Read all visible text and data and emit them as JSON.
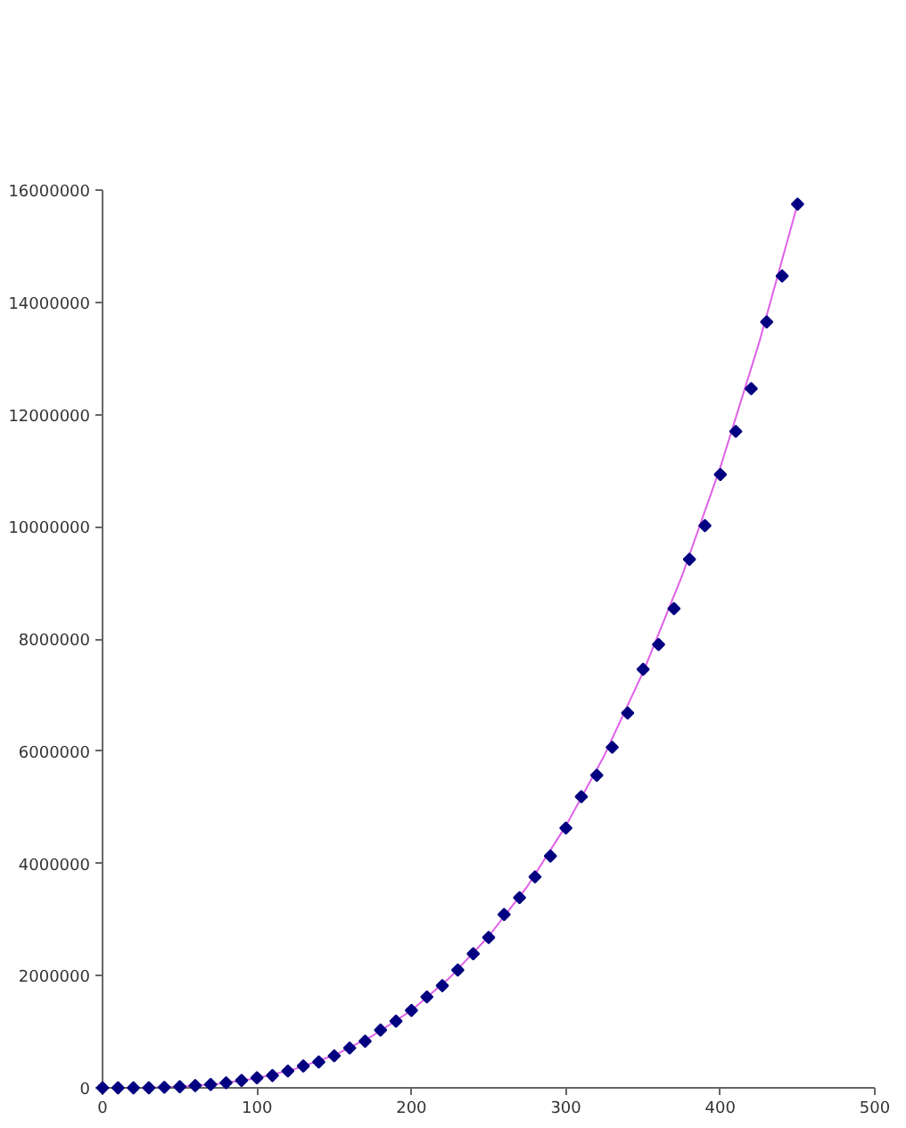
{
  "chart_data": {
    "type": "scatter",
    "xlim": [
      0,
      500
    ],
    "xticks": [
      0,
      100,
      200,
      300,
      400,
      500
    ],
    "ylim": [
      0,
      16000000
    ],
    "yticks": [
      0,
      2000000,
      4000000,
      6000000,
      8000000,
      10000000,
      12000000,
      14000000,
      16000000
    ],
    "grid": false,
    "marker": "diamond",
    "series": [
      {
        "type": "line",
        "marker": "none",
        "color": "#e060e8",
        "x": [
          0,
          25,
          50,
          75,
          100,
          125,
          150,
          175,
          200,
          225,
          250,
          275,
          300,
          325,
          350,
          375,
          400,
          425,
          450
        ],
        "values": [
          0,
          0,
          20000,
          70000,
          170000,
          340000,
          580000,
          930000,
          1380000,
          1970000,
          2700000,
          3590000,
          4670000,
          5930000,
          7410000,
          9110000,
          11060000,
          13270000,
          15750000
        ]
      },
      {
        "color": "#000080",
        "x": [
          0,
          10,
          20,
          30,
          40,
          50,
          60,
          70,
          80,
          90,
          100,
          110,
          120,
          130,
          140,
          150,
          160,
          170,
          180,
          190,
          200,
          210,
          220,
          230,
          240,
          250,
          260,
          270,
          280,
          290,
          300,
          310,
          320,
          330,
          340,
          350,
          360,
          370,
          380,
          390,
          400,
          410,
          420,
          430,
          440,
          450
        ],
        "values": [
          0,
          0,
          0,
          0,
          10000,
          20000,
          40000,
          60000,
          90000,
          130000,
          180000,
          220000,
          300000,
          390000,
          460000,
          570000,
          710000,
          830000,
          1030000,
          1190000,
          1380000,
          1620000,
          1820000,
          2100000,
          2390000,
          2680000,
          3090000,
          3390000,
          3760000,
          4130000,
          4630000,
          5190000,
          5570000,
          6070000,
          6680000,
          7460000,
          7900000,
          8540000,
          9420000,
          10020000,
          10930000,
          11700000,
          12460000,
          13650000,
          14470000,
          15750000
        ]
      }
    ]
  }
}
